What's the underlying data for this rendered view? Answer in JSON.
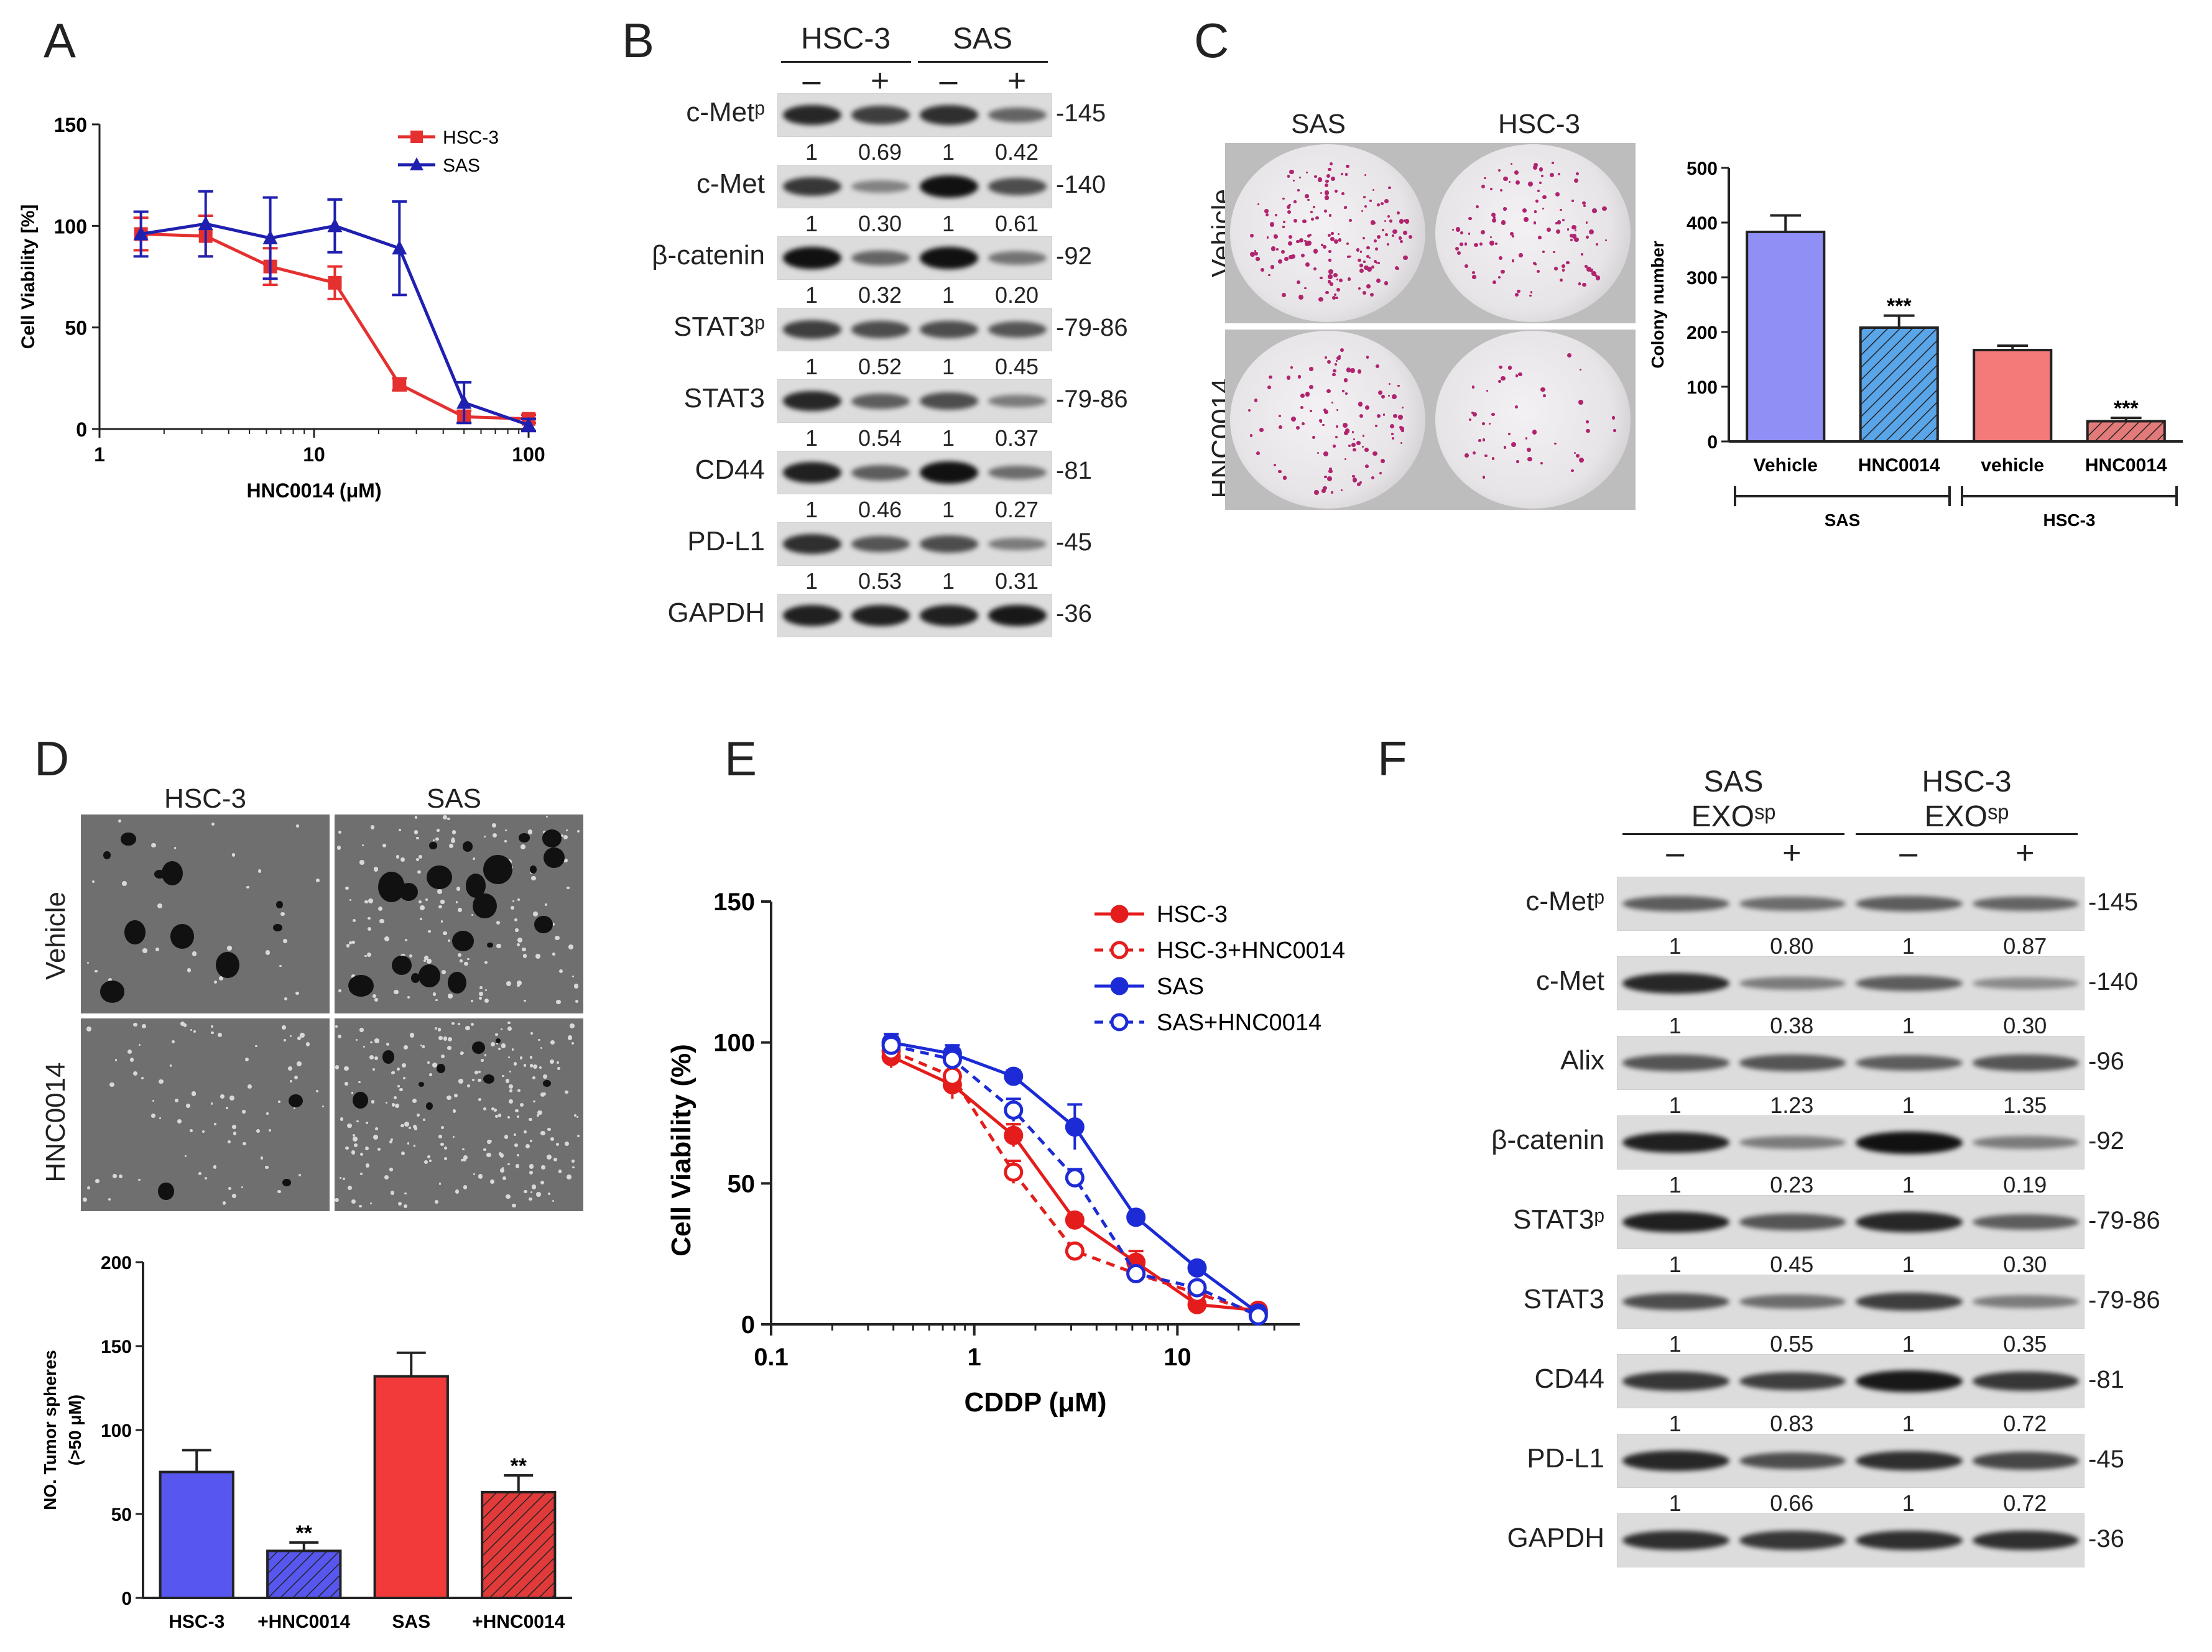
{
  "panels": {
    "A": {
      "label": "A",
      "chart_data": {
        "type": "line",
        "xscale": "log",
        "xlim": [
          1,
          100
        ],
        "ylim": [
          0,
          150
        ],
        "xticks": [
          1,
          10,
          100
        ],
        "yticks": [
          0,
          50,
          100,
          150
        ],
        "xlabel": "HNC0014 (μM)",
        "ylabel": "Cell Viability [%]",
        "series": [
          {
            "name": "HSC-3",
            "color": "#e53030",
            "marker": "square",
            "x": [
              1.56,
              3.125,
              6.25,
              12.5,
              25,
              50,
              100
            ],
            "y": [
              96,
              95,
              80,
              72,
              22,
              6,
              5
            ],
            "err": [
              8,
              10,
              9,
              8,
              3,
              3,
              2
            ]
          },
          {
            "name": "SAS",
            "color": "#2020b0",
            "marker": "triangle",
            "x": [
              1.56,
              3.125,
              6.25,
              12.5,
              25,
              50,
              100
            ],
            "y": [
              96,
              101,
              94,
              100,
              89,
              13,
              2
            ],
            "err": [
              11,
              16,
              20,
              13,
              23,
              10,
              3
            ]
          }
        ]
      }
    },
    "B": {
      "label": "B",
      "groups": [
        "HSC-3",
        "SAS"
      ],
      "signs": [
        "–",
        "+",
        "–",
        "+"
      ],
      "rows": [
        {
          "protein": "c-Metᵖ",
          "mw": "-145",
          "quant": [
            "1",
            "0.69",
            "1",
            "0.42"
          ],
          "int": [
            0.85,
            0.7,
            0.8,
            0.45
          ]
        },
        {
          "protein": "c-Met",
          "mw": "-140",
          "quant": [
            "1",
            "0.30",
            "1",
            "0.61"
          ],
          "int": [
            0.75,
            0.25,
            1.0,
            0.6
          ]
        },
        {
          "protein": "β-catenin",
          "mw": "-92",
          "quant": [
            "1",
            "0.32",
            "1",
            "0.20"
          ],
          "int": [
            1.0,
            0.45,
            1.0,
            0.35
          ]
        },
        {
          "protein": "STAT3ᵖ",
          "mw": "-79-86",
          "quant": [
            "1",
            "0.52",
            "1",
            "0.45"
          ],
          "int": [
            0.7,
            0.6,
            0.6,
            0.55
          ]
        },
        {
          "protein": "STAT3",
          "mw": "-79-86",
          "quant": [
            "1",
            "0.54",
            "1",
            "0.37"
          ],
          "int": [
            0.85,
            0.5,
            0.6,
            0.3
          ]
        },
        {
          "protein": "CD44",
          "mw": "-81",
          "quant": [
            "1",
            "0.46",
            "1",
            "0.27"
          ],
          "int": [
            0.9,
            0.5,
            1.0,
            0.4
          ]
        },
        {
          "protein": "PD-L1",
          "mw": "-45",
          "quant": [
            "1",
            "0.53",
            "1",
            "0.31"
          ],
          "int": [
            0.8,
            0.55,
            0.6,
            0.3
          ]
        },
        {
          "protein": "GAPDH",
          "mw": "-36",
          "quant": [
            "",
            "",
            "",
            ""
          ],
          "int": [
            0.9,
            0.9,
            0.9,
            0.95
          ]
        }
      ]
    },
    "C": {
      "label": "C",
      "col_labels": [
        "SAS",
        "HSC-3"
      ],
      "row_labels": [
        "Vehicle",
        "HNC0014"
      ],
      "chart_data": {
        "type": "bar",
        "categories": [
          "Vehicle",
          "HNC0014",
          "vehicle",
          "HNC0014"
        ],
        "values": [
          383,
          208,
          167,
          37
        ],
        "errors": [
          30,
          22,
          8,
          6
        ],
        "colors": [
          "#8f8ff5",
          "#5aa4e8",
          "#f47a7a",
          "#e27a7a"
        ],
        "hatched": [
          false,
          true,
          false,
          true
        ],
        "annotations": [
          "",
          "***",
          "",
          "***"
        ],
        "ylim": [
          0,
          500
        ],
        "yticks": [
          0,
          100,
          200,
          300,
          400,
          500
        ],
        "ylabel": "Colony number",
        "groups": [
          "SAS",
          "HSC-3"
        ]
      }
    },
    "D": {
      "label": "D",
      "col_labels": [
        "HSC-3",
        "SAS"
      ],
      "row_labels": [
        "Vehicle",
        "HNC0014"
      ],
      "chart_data": {
        "type": "bar",
        "categories": [
          "HSC-3",
          "+HNC0014",
          "SAS",
          "+HNC0014"
        ],
        "values": [
          75,
          28,
          132,
          63
        ],
        "errors": [
          13,
          5,
          14,
          10
        ],
        "colors": [
          "#5757f0",
          "#5757f0",
          "#f23a3a",
          "#e03a3a"
        ],
        "hatched": [
          false,
          true,
          false,
          true
        ],
        "annotations": [
          "",
          "**",
          "",
          "**"
        ],
        "ylim": [
          0,
          200
        ],
        "yticks": [
          0,
          50,
          100,
          150,
          200
        ],
        "ylabel": "NO. Tumor spheres",
        "ylabel2": "(>50 μM)"
      }
    },
    "E": {
      "label": "E",
      "chart_data": {
        "type": "line",
        "xscale": "log",
        "xlim": [
          0.1,
          40
        ],
        "ylim": [
          0,
          150
        ],
        "xticks": [
          0.1,
          1,
          10
        ],
        "xtick_labels": [
          "0.1",
          "1",
          "10"
        ],
        "yticks": [
          0,
          50,
          100,
          150
        ],
        "xlabel": "CDDP (μM)",
        "ylabel": "Cell Viability (%)",
        "series": [
          {
            "name": "HSC-3",
            "color": "#e51c1c",
            "dashed": false,
            "open": false,
            "x": [
              0.39,
              0.78,
              1.56,
              3.125,
              6.25,
              12.5,
              25
            ],
            "y": [
              95,
              85,
              67,
              37,
              22,
              7,
              5
            ],
            "err": [
              4,
              5,
              4,
              2,
              4,
              2,
              1
            ]
          },
          {
            "name": "HSC-3+HNC0014",
            "color": "#e51c1c",
            "dashed": true,
            "open": true,
            "x": [
              0.39,
              0.78,
              1.56,
              3.125,
              6.25,
              12.5,
              25
            ],
            "y": [
              97,
              88,
              54,
              26,
              18,
              11,
              4
            ],
            "err": [
              3,
              4,
              4,
              2,
              3,
              2,
              1
            ]
          },
          {
            "name": "SAS",
            "color": "#1c2bd6",
            "dashed": false,
            "open": false,
            "x": [
              0.39,
              0.78,
              1.56,
              3.125,
              6.25,
              12.5,
              25
            ],
            "y": [
              100,
              96,
              88,
              70,
              38,
              20,
              4
            ],
            "err": [
              3,
              3,
              2,
              8,
              2,
              2,
              1
            ]
          },
          {
            "name": "SAS+HNC0014",
            "color": "#1c2bd6",
            "dashed": true,
            "open": true,
            "x": [
              0.39,
              0.78,
              1.56,
              3.125,
              6.25,
              12.5,
              25
            ],
            "y": [
              99,
              94,
              76,
              52,
              18,
              13,
              3
            ],
            "err": [
              3,
              3,
              4,
              3,
              2,
              2,
              1
            ]
          }
        ]
      }
    },
    "F": {
      "label": "F",
      "groups": [
        "SAS",
        "HSC-3"
      ],
      "group_sub": [
        "EXOˢᵖ",
        "EXOˢᵖ"
      ],
      "signs": [
        "–",
        "+",
        "–",
        "+"
      ],
      "rows": [
        {
          "protein": "c-Metᵖ",
          "mw": "-145",
          "quant": [
            "1",
            "0.80",
            "1",
            "0.87"
          ],
          "int": [
            0.5,
            0.4,
            0.5,
            0.45
          ]
        },
        {
          "protein": "c-Met",
          "mw": "-140",
          "quant": [
            "1",
            "0.38",
            "1",
            "0.30"
          ],
          "int": [
            0.85,
            0.3,
            0.5,
            0.2
          ]
        },
        {
          "protein": "Alix",
          "mw": "-96",
          "quant": [
            "1",
            "1.23",
            "1",
            "1.35"
          ],
          "int": [
            0.55,
            0.55,
            0.5,
            0.55
          ]
        },
        {
          "protein": "β-catenin",
          "mw": "-92",
          "quant": [
            "1",
            "0.23",
            "1",
            "0.19"
          ],
          "int": [
            0.9,
            0.3,
            1.0,
            0.3
          ]
        },
        {
          "protein": "STAT3ᵖ",
          "mw": "-79-86",
          "quant": [
            "1",
            "0.45",
            "1",
            "0.30"
          ],
          "int": [
            0.9,
            0.55,
            0.85,
            0.5
          ]
        },
        {
          "protein": "STAT3",
          "mw": "-79-86",
          "quant": [
            "1",
            "0.55",
            "1",
            "0.35"
          ],
          "int": [
            0.6,
            0.4,
            0.7,
            0.3
          ]
        },
        {
          "protein": "CD44",
          "mw": "-81",
          "quant": [
            "1",
            "0.83",
            "1",
            "0.72"
          ],
          "int": [
            0.75,
            0.7,
            0.95,
            0.75
          ]
        },
        {
          "protein": "PD-L1",
          "mw": "-45",
          "quant": [
            "1",
            "0.66",
            "1",
            "0.72"
          ],
          "int": [
            0.85,
            0.6,
            0.8,
            0.65
          ]
        },
        {
          "protein": "GAPDH",
          "mw": "-36",
          "quant": [
            "",
            "",
            "",
            ""
          ],
          "int": [
            0.8,
            0.75,
            0.8,
            0.8
          ]
        }
      ]
    }
  }
}
